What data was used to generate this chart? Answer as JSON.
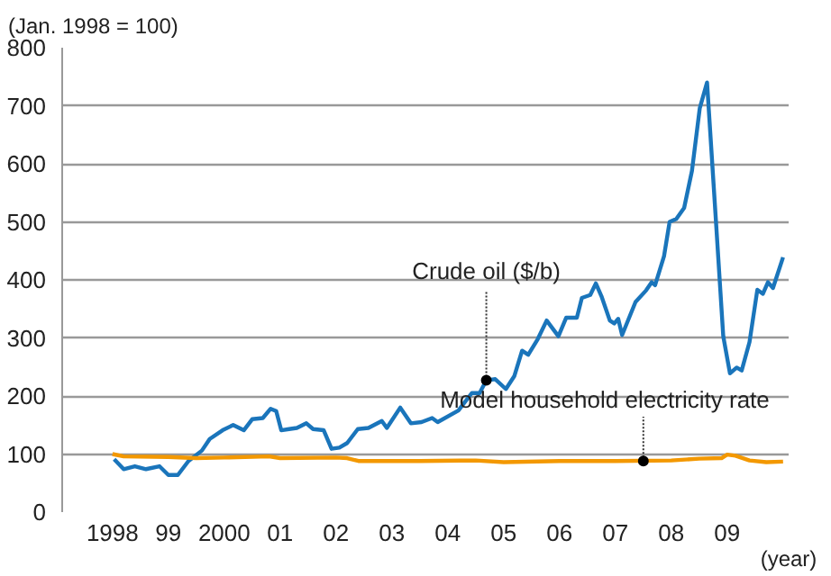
{
  "chart_data": {
    "type": "line",
    "ylabel": "(Jan. 1998 = 100)",
    "xlabel": "(year)",
    "xlim": [
      1997.1,
      2010.1
    ],
    "ylim": [
      0,
      800
    ],
    "yticks": [
      0,
      100,
      200,
      300,
      400,
      500,
      600,
      700,
      800
    ],
    "xticks": [
      {
        "value": 1998,
        "label": "1998"
      },
      {
        "value": 1999,
        "label": "99"
      },
      {
        "value": 2000,
        "label": "2000"
      },
      {
        "value": 2001,
        "label": "01"
      },
      {
        "value": 2002,
        "label": "02"
      },
      {
        "value": 2003,
        "label": "03"
      },
      {
        "value": 2004,
        "label": "04"
      },
      {
        "value": 2005,
        "label": "05"
      },
      {
        "value": 2006,
        "label": "06"
      },
      {
        "value": 2007,
        "label": "07"
      },
      {
        "value": 2008,
        "label": "08"
      },
      {
        "value": 2009,
        "label": "09"
      }
    ],
    "grid": "y",
    "marker": "none",
    "line_style": "solid",
    "series": [
      {
        "color": "#1a75bb",
        "x": [
          1998.03,
          1998.2,
          1998.4,
          1998.6,
          1998.84,
          1999.0,
          1999.17,
          1999.36,
          1999.6,
          1999.74,
          1999.97,
          2000.16,
          2000.35,
          2000.5,
          2000.69,
          2000.83,
          2000.93,
          2001.02,
          2001.16,
          2001.3,
          2001.47,
          2001.59,
          2001.78,
          2001.92,
          2002.06,
          2002.2,
          2002.39,
          2002.58,
          2002.82,
          2002.91,
          2003.15,
          2003.34,
          2003.53,
          2003.72,
          2003.82,
          2004.19,
          2004.43,
          2004.57,
          2004.69,
          2004.85,
          2005.04,
          2005.19,
          2005.33,
          2005.44,
          2005.61,
          2005.77,
          2005.98,
          2006.12,
          2006.31,
          2006.4,
          2006.55,
          2006.65,
          2006.75,
          2006.9,
          2006.98,
          2007.05,
          2007.12,
          2007.36,
          2007.55,
          2007.65,
          2007.71,
          2007.87,
          2007.97,
          2008.09,
          2008.23,
          2008.37,
          2008.51,
          2008.64,
          2008.8,
          2008.93,
          2009.05,
          2009.17,
          2009.26,
          2009.4,
          2009.54,
          2009.64,
          2009.73,
          2009.82,
          2010.0
        ],
        "values": [
          91,
          74,
          79,
          74,
          79,
          64,
          64,
          88,
          106,
          126,
          141,
          150,
          141,
          160,
          162,
          178,
          174,
          141,
          143,
          145,
          153,
          143,
          141,
          109,
          111,
          119,
          143,
          145,
          157,
          145,
          180,
          153,
          155,
          162,
          155,
          175,
          205,
          205,
          227,
          229,
          212,
          234,
          278,
          271,
          298,
          330,
          303,
          335,
          335,
          369,
          374,
          394,
          372,
          330,
          325,
          333,
          305,
          362,
          382,
          396,
          391,
          441,
          500,
          505,
          524,
          588,
          696,
          740,
          500,
          303,
          239,
          249,
          244,
          293,
          383,
          376,
          396,
          386,
          439
        ]
      },
      {
        "color": "#f39800",
        "x": [
          1998.0,
          1998.2,
          1999.0,
          1999.5,
          2000.0,
          2000.8,
          2001.0,
          2002.0,
          2002.2,
          2002.4,
          2003.5,
          2004.5,
          2005.0,
          2006.0,
          2007.0,
          2008.0,
          2008.5,
          2008.9,
          2009.0,
          2009.15,
          2009.4,
          2009.7,
          2010.0
        ],
        "values": [
          100,
          96,
          95,
          93,
          94,
          96,
          93,
          94,
          93,
          88,
          88,
          89,
          86,
          88,
          88,
          89,
          92,
          93,
          99,
          97,
          89,
          86,
          87
        ]
      }
    ],
    "annotations": [
      {
        "text": "Crude oil ($/b)",
        "x": 2004.69,
        "y": 227
      },
      {
        "text": "Model household electricity rate",
        "x": 2007.5,
        "y": 88
      }
    ]
  }
}
